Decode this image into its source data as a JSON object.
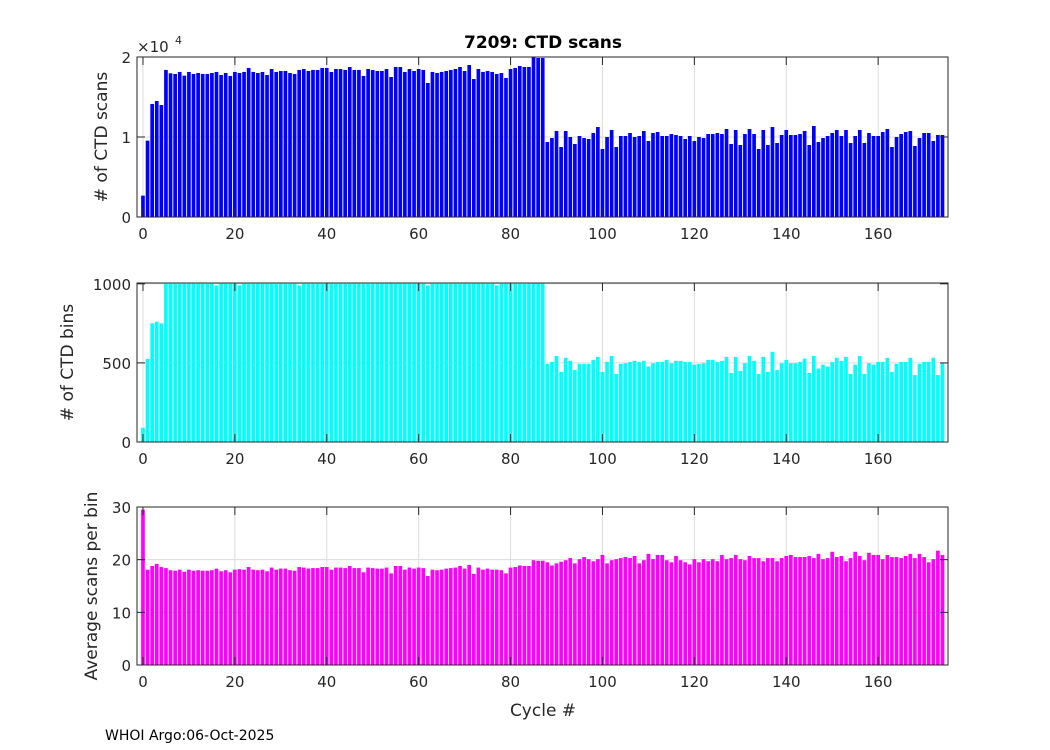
{
  "chart_data": [
    {
      "type": "bar",
      "title": "7209: CTD scans",
      "xlabel": "",
      "ylabel": "# of CTD scans",
      "y_exponent_label": "×10",
      "y_exponent_power": "4",
      "color": "#0000ff",
      "xlim": [
        -1.3,
        175.2
      ],
      "ylim": [
        0,
        20000
      ],
      "xticks": [
        0,
        20,
        40,
        60,
        80,
        100,
        120,
        140,
        160
      ],
      "xtick_labels": [
        "0",
        "20",
        "40",
        "60",
        "80",
        "100",
        "120",
        "140",
        "160"
      ],
      "yticks": [
        0,
        10000,
        20000
      ],
      "ytick_labels": [
        "0",
        "1",
        "2"
      ],
      "grid": true,
      "values": [
        2670,
        9540,
        14130,
        14500,
        14000,
        18380,
        17960,
        17880,
        18130,
        17670,
        18130,
        17880,
        18000,
        17880,
        17880,
        18000,
        18130,
        17750,
        18000,
        17630,
        18130,
        18000,
        18130,
        18630,
        18130,
        18000,
        18130,
        17750,
        18500,
        18130,
        18250,
        18250,
        18000,
        17880,
        18380,
        18500,
        18250,
        18380,
        18380,
        18630,
        18630,
        18130,
        18500,
        18500,
        18380,
        18750,
        18380,
        18380,
        17630,
        18500,
        18380,
        18250,
        18250,
        18500,
        17500,
        18750,
        18750,
        18130,
        18500,
        18250,
        18500,
        18380,
        16750,
        18130,
        18000,
        18130,
        18250,
        18380,
        18500,
        18750,
        18250,
        19000,
        17250,
        18500,
        18130,
        18250,
        18130,
        17880,
        18000,
        17380,
        18500,
        18630,
        18880,
        18750,
        18750,
        20000,
        19880,
        19880,
        9375,
        9875,
        10750,
        8750,
        10750,
        10000,
        9125,
        10125,
        9875,
        9750,
        10500,
        11250,
        8500,
        10000,
        10875,
        8750,
        10125,
        10125,
        10500,
        10000,
        10125,
        10750,
        9500,
        10500,
        10625,
        10125,
        10125,
        10375,
        10250,
        10125,
        9750,
        10125,
        9500,
        10000,
        9875,
        10375,
        10375,
        10500,
        10375,
        11000,
        9125,
        10875,
        9000,
        10375,
        11000,
        10375,
        8500,
        10875,
        9000,
        11250,
        9250,
        10250,
        10875,
        10250,
        10250,
        10375,
        10750,
        9000,
        11375,
        9375,
        9875,
        10125,
        10500,
        10875,
        10125,
        10875,
        9250,
        10125,
        10875,
        9250,
        10500,
        10125,
        10125,
        10625,
        11000,
        8750,
        10000,
        10375,
        10625,
        10750,
        8875,
        9875,
        10500,
        10500,
        9500,
        10250,
        10250
      ]
    },
    {
      "type": "bar",
      "ylabel": "# of CTD bins",
      "color": "#00ffff",
      "xlim": [
        -1.3,
        175.2
      ],
      "ylim": [
        0,
        1005
      ],
      "xticks": [
        0,
        20,
        40,
        60,
        80,
        100,
        120,
        140,
        160
      ],
      "xtick_labels": [
        "0",
        "20",
        "40",
        "60",
        "80",
        "100",
        "120",
        "140",
        "160"
      ],
      "yticks": [
        0,
        500,
        1000
      ],
      "ytick_labels": [
        "0",
        "500",
        "1000"
      ],
      "grid": true,
      "values": [
        90,
        525,
        750,
        760,
        750,
        1000,
        1000,
        1000,
        1000,
        1000,
        1000,
        1000,
        1000,
        1000,
        1000,
        1000,
        990,
        1000,
        1000,
        1000,
        1000,
        990,
        1000,
        1000,
        1000,
        1000,
        1000,
        1000,
        1000,
        1000,
        1000,
        1000,
        1000,
        1000,
        990,
        1000,
        1000,
        1000,
        1000,
        1000,
        1000,
        1000,
        1000,
        1000,
        1000,
        1000,
        1000,
        1000,
        1000,
        1000,
        1000,
        1000,
        1000,
        1000,
        1005,
        1000,
        1000,
        1000,
        1000,
        1000,
        1000,
        1000,
        990,
        1000,
        1000,
        1000,
        1000,
        1000,
        1000,
        1000,
        1000,
        1000,
        1000,
        1000,
        1000,
        1000,
        1000,
        990,
        1000,
        1000,
        1000,
        1000,
        1000,
        1000,
        1000,
        1005,
        1005,
        1005,
        494,
        506,
        544,
        443,
        532,
        513,
        456,
        494,
        494,
        494,
        519,
        538,
        443,
        506,
        544,
        430,
        494,
        498,
        506,
        513,
        506,
        513,
        477,
        498,
        506,
        506,
        519,
        498,
        513,
        513,
        506,
        506,
        489,
        494,
        498,
        519,
        519,
        506,
        513,
        538,
        436,
        538,
        449,
        498,
        544,
        513,
        430,
        538,
        443,
        570,
        456,
        498,
        519,
        498,
        498,
        506,
        527,
        436,
        544,
        464,
        489,
        477,
        506,
        532,
        513,
        538,
        430,
        489,
        544,
        430,
        498,
        489,
        506,
        506,
        532,
        443,
        494,
        506,
        506,
        532,
        423,
        494,
        506,
        506,
        532,
        423,
        500
      ]
    },
    {
      "type": "bar",
      "xlabel": "Cycle #",
      "ylabel": "Average scans per bin",
      "color": "#ff00ff",
      "xlim": [
        -1.3,
        175.2
      ],
      "ylim": [
        0,
        30
      ],
      "xticks": [
        0,
        20,
        40,
        60,
        80,
        100,
        120,
        140,
        160
      ],
      "xtick_labels": [
        "0",
        "20",
        "40",
        "60",
        "80",
        "100",
        "120",
        "140",
        "160"
      ],
      "yticks": [
        0,
        10,
        20,
        30
      ],
      "ytick_labels": [
        "0",
        "10",
        "20",
        "30"
      ],
      "grid": true,
      "values": [
        29.5,
        18.1,
        18.8,
        19.2,
        18.6,
        18.4,
        18.0,
        17.9,
        18.1,
        17.7,
        18.1,
        17.9,
        18.0,
        17.9,
        17.9,
        18.0,
        18.3,
        17.8,
        18.0,
        17.6,
        18.1,
        18.2,
        18.1,
        18.6,
        18.1,
        18.0,
        18.1,
        17.8,
        18.5,
        18.1,
        18.3,
        18.3,
        18.0,
        17.9,
        18.6,
        18.5,
        18.3,
        18.4,
        18.4,
        18.6,
        18.6,
        18.1,
        18.5,
        18.5,
        18.4,
        18.8,
        18.4,
        18.4,
        17.6,
        18.5,
        18.4,
        18.3,
        18.3,
        18.5,
        17.4,
        18.8,
        18.8,
        18.1,
        18.5,
        18.3,
        18.5,
        18.4,
        16.9,
        18.1,
        18.0,
        18.1,
        18.3,
        18.4,
        18.5,
        18.8,
        18.3,
        19.0,
        17.3,
        18.5,
        18.1,
        18.3,
        18.1,
        18.1,
        18.0,
        17.4,
        18.5,
        18.6,
        18.9,
        18.8,
        18.8,
        19.9,
        19.8,
        19.8,
        19.5,
        18.9,
        19.3,
        19.6,
        19.9,
        20.3,
        19.3,
        20.1,
        20.5,
        20.1,
        19.7,
        20.1,
        20.9,
        19.3,
        19.9,
        20.1,
        20.3,
        20.5,
        20.3,
        20.7,
        19.3,
        19.9,
        21.1,
        20.1,
        20.9,
        20.9,
        19.9,
        19.5,
        20.7,
        19.9,
        19.5,
        19.1,
        20.1,
        19.5,
        20.1,
        19.7,
        20.1,
        19.7,
        20.9,
        20.1,
        20.3,
        20.9,
        20.1,
        19.9,
        20.7,
        20.3,
        20.3,
        19.7,
        20.3,
        20.3,
        19.7,
        20.3,
        20.7,
        20.9,
        20.5,
        20.5,
        20.5,
        20.7,
        20.3,
        21.1,
        20.1,
        20.3,
        21.5,
        20.5,
        20.7,
        19.7,
        20.3,
        21.5,
        20.7,
        19.9,
        21.3,
        20.9,
        20.9,
        20.1,
        20.9,
        20.5,
        20.5,
        20.3,
        20.7,
        21.1,
        20.3,
        21.1,
        20.5,
        19.5,
        20.1,
        21.7,
        20.9
      ]
    }
  ],
  "footer": "WHOI Argo:06-Oct-2025"
}
